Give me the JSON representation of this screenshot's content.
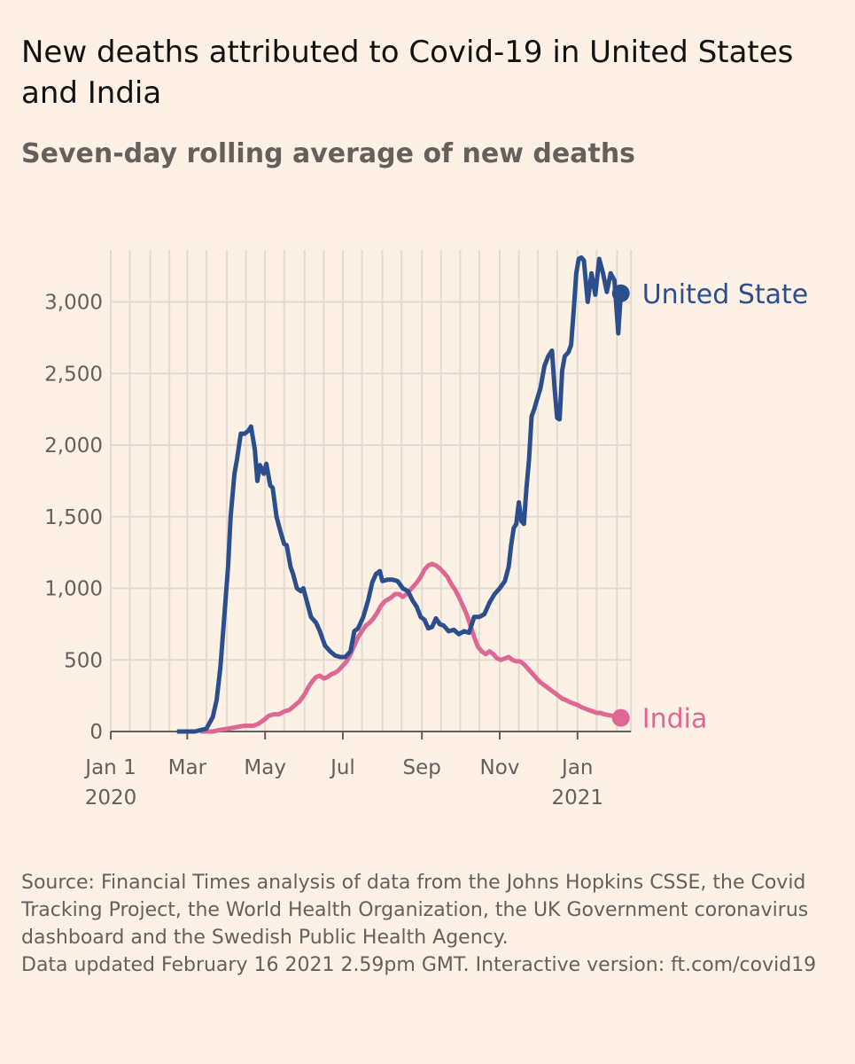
{
  "header": {
    "title": "New deaths attributed to Covid-19 in United States and India",
    "subtitle": "Seven-day rolling average of new deaths"
  },
  "footer": {
    "source": "Source: Financial Times analysis of data from the Johns Hopkins CSSE, the Covid Tracking Project, the World Health Organization, the UK Government coronavirus dashboard and the Swedish Public Health Agency.",
    "updated": "Data updated February 16 2021 2.59pm GMT. Interactive version: ft.com/covid19"
  },
  "colors": {
    "background": "#fdf1e6",
    "us": "#2b4e8d",
    "india": "#de6893",
    "grid": "#e3dbd3",
    "axis": "#66605c"
  },
  "chart_data": {
    "type": "line",
    "title": "New deaths attributed to Covid-19 in United States and India",
    "subtitle": "Seven-day rolling average of new deaths",
    "xlabel": "",
    "ylabel": "",
    "x_unit": "days since Jan 1 2020",
    "xlim": [
      0,
      412
    ],
    "ylim": [
      0,
      3300
    ],
    "grid": true,
    "y_ticks": [
      0,
      500,
      1000,
      1500,
      2000,
      2500,
      3000
    ],
    "y_tick_labels": [
      "0",
      "500",
      "1,000",
      "1,500",
      "2,000",
      "2,500",
      "3,000"
    ],
    "x_gridlines": [
      0,
      15,
      31,
      46,
      60,
      75,
      91,
      106,
      121,
      136,
      152,
      167,
      182,
      197,
      213,
      228,
      244,
      259,
      274,
      289,
      305,
      320,
      335,
      350,
      366,
      381,
      397,
      408
    ],
    "x_ticks": [
      {
        "x": 0,
        "line1": "Jan 1",
        "line2": "2020"
      },
      {
        "x": 60,
        "line1": "Mar",
        "line2": ""
      },
      {
        "x": 121,
        "line1": "May",
        "line2": ""
      },
      {
        "x": 182,
        "line1": "Jul",
        "line2": ""
      },
      {
        "x": 244,
        "line1": "Sep",
        "line2": ""
      },
      {
        "x": 305,
        "line1": "Nov",
        "line2": ""
      },
      {
        "x": 366,
        "line1": "Jan",
        "line2": "2021"
      }
    ],
    "series": [
      {
        "name": "United States",
        "label": "United State",
        "color": "#2b4e8d",
        "end_value": 3060,
        "points": [
          [
            52,
            0
          ],
          [
            66,
            0
          ],
          [
            75,
            20
          ],
          [
            80,
            100
          ],
          [
            83,
            220
          ],
          [
            86,
            450
          ],
          [
            89,
            800
          ],
          [
            92,
            1150
          ],
          [
            94,
            1500
          ],
          [
            97,
            1800
          ],
          [
            99,
            1900
          ],
          [
            102,
            2080
          ],
          [
            105,
            2080
          ],
          [
            108,
            2100
          ],
          [
            110,
            2130
          ],
          [
            113,
            1970
          ],
          [
            115,
            1750
          ],
          [
            117,
            1860
          ],
          [
            120,
            1800
          ],
          [
            122,
            1870
          ],
          [
            125,
            1720
          ],
          [
            127,
            1700
          ],
          [
            130,
            1500
          ],
          [
            133,
            1400
          ],
          [
            136,
            1310
          ],
          [
            138,
            1300
          ],
          [
            141,
            1150
          ],
          [
            143,
            1100
          ],
          [
            146,
            1000
          ],
          [
            149,
            980
          ],
          [
            151,
            1000
          ],
          [
            154,
            900
          ],
          [
            157,
            800
          ],
          [
            161,
            760
          ],
          [
            164,
            700
          ],
          [
            168,
            600
          ],
          [
            172,
            560
          ],
          [
            176,
            530
          ],
          [
            180,
            520
          ],
          [
            184,
            520
          ],
          [
            188,
            560
          ],
          [
            191,
            700
          ],
          [
            194,
            720
          ],
          [
            198,
            800
          ],
          [
            202,
            920
          ],
          [
            205,
            1040
          ],
          [
            208,
            1100
          ],
          [
            211,
            1120
          ],
          [
            213,
            1050
          ],
          [
            217,
            1060
          ],
          [
            221,
            1060
          ],
          [
            225,
            1050
          ],
          [
            229,
            1000
          ],
          [
            233,
            980
          ],
          [
            237,
            910
          ],
          [
            240,
            870
          ],
          [
            243,
            800
          ],
          [
            246,
            780
          ],
          [
            249,
            720
          ],
          [
            252,
            730
          ],
          [
            255,
            790
          ],
          [
            258,
            750
          ],
          [
            261,
            740
          ],
          [
            265,
            700
          ],
          [
            269,
            710
          ],
          [
            273,
            680
          ],
          [
            277,
            700
          ],
          [
            281,
            690
          ],
          [
            285,
            800
          ],
          [
            289,
            800
          ],
          [
            293,
            820
          ],
          [
            297,
            900
          ],
          [
            301,
            960
          ],
          [
            305,
            1000
          ],
          [
            309,
            1050
          ],
          [
            312,
            1150
          ],
          [
            314,
            1300
          ],
          [
            316,
            1420
          ],
          [
            318,
            1450
          ],
          [
            320,
            1600
          ],
          [
            322,
            1470
          ],
          [
            324,
            1450
          ],
          [
            326,
            1700
          ],
          [
            328,
            1900
          ],
          [
            330,
            2200
          ],
          [
            332,
            2250
          ],
          [
            334,
            2310
          ],
          [
            337,
            2400
          ],
          [
            340,
            2550
          ],
          [
            343,
            2620
          ],
          [
            346,
            2660
          ],
          [
            348,
            2400
          ],
          [
            350,
            2190
          ],
          [
            352,
            2180
          ],
          [
            354,
            2520
          ],
          [
            356,
            2620
          ],
          [
            359,
            2650
          ],
          [
            361,
            2700
          ],
          [
            363,
            2940
          ],
          [
            365,
            3200
          ],
          [
            367,
            3300
          ],
          [
            369,
            3310
          ],
          [
            371,
            3290
          ],
          [
            374,
            3000
          ],
          [
            377,
            3200
          ],
          [
            380,
            3050
          ],
          [
            383,
            3300
          ],
          [
            386,
            3200
          ],
          [
            389,
            3070
          ],
          [
            392,
            3200
          ],
          [
            395,
            3150
          ],
          [
            398,
            2780
          ],
          [
            400,
            3060
          ]
        ]
      },
      {
        "name": "India",
        "label": "India",
        "color": "#de6893",
        "end_value": 95,
        "points": [
          [
            70,
            0
          ],
          [
            80,
            0
          ],
          [
            85,
            10
          ],
          [
            92,
            20
          ],
          [
            98,
            30
          ],
          [
            105,
            40
          ],
          [
            112,
            40
          ],
          [
            116,
            55
          ],
          [
            120,
            80
          ],
          [
            124,
            110
          ],
          [
            128,
            120
          ],
          [
            132,
            120
          ],
          [
            136,
            140
          ],
          [
            140,
            150
          ],
          [
            144,
            180
          ],
          [
            148,
            210
          ],
          [
            152,
            260
          ],
          [
            155,
            310
          ],
          [
            158,
            350
          ],
          [
            161,
            380
          ],
          [
            164,
            390
          ],
          [
            167,
            370
          ],
          [
            170,
            380
          ],
          [
            173,
            400
          ],
          [
            176,
            410
          ],
          [
            179,
            430
          ],
          [
            182,
            460
          ],
          [
            185,
            490
          ],
          [
            188,
            540
          ],
          [
            191,
            600
          ],
          [
            194,
            660
          ],
          [
            197,
            700
          ],
          [
            200,
            740
          ],
          [
            203,
            760
          ],
          [
            206,
            790
          ],
          [
            209,
            830
          ],
          [
            212,
            880
          ],
          [
            215,
            910
          ],
          [
            219,
            930
          ],
          [
            223,
            960
          ],
          [
            226,
            960
          ],
          [
            229,
            940
          ],
          [
            232,
            960
          ],
          [
            236,
            1000
          ],
          [
            240,
            1040
          ],
          [
            243,
            1080
          ],
          [
            246,
            1130
          ],
          [
            249,
            1160
          ],
          [
            252,
            1170
          ],
          [
            255,
            1160
          ],
          [
            258,
            1140
          ],
          [
            261,
            1110
          ],
          [
            264,
            1080
          ],
          [
            267,
            1030
          ],
          [
            270,
            990
          ],
          [
            273,
            940
          ],
          [
            276,
            880
          ],
          [
            279,
            820
          ],
          [
            282,
            740
          ],
          [
            285,
            660
          ],
          [
            288,
            590
          ],
          [
            291,
            560
          ],
          [
            294,
            540
          ],
          [
            297,
            560
          ],
          [
            300,
            540
          ],
          [
            303,
            510
          ],
          [
            306,
            500
          ],
          [
            309,
            510
          ],
          [
            312,
            520
          ],
          [
            315,
            500
          ],
          [
            318,
            490
          ],
          [
            321,
            490
          ],
          [
            324,
            470
          ],
          [
            327,
            440
          ],
          [
            330,
            410
          ],
          [
            333,
            380
          ],
          [
            336,
            350
          ],
          [
            339,
            330
          ],
          [
            342,
            310
          ],
          [
            345,
            290
          ],
          [
            348,
            270
          ],
          [
            351,
            250
          ],
          [
            354,
            230
          ],
          [
            357,
            220
          ],
          [
            360,
            205
          ],
          [
            363,
            195
          ],
          [
            366,
            185
          ],
          [
            369,
            170
          ],
          [
            372,
            160
          ],
          [
            375,
            150
          ],
          [
            378,
            140
          ],
          [
            381,
            130
          ],
          [
            384,
            130
          ],
          [
            387,
            120
          ],
          [
            390,
            115
          ],
          [
            393,
            110
          ],
          [
            396,
            105
          ],
          [
            400,
            95
          ]
        ]
      }
    ]
  }
}
